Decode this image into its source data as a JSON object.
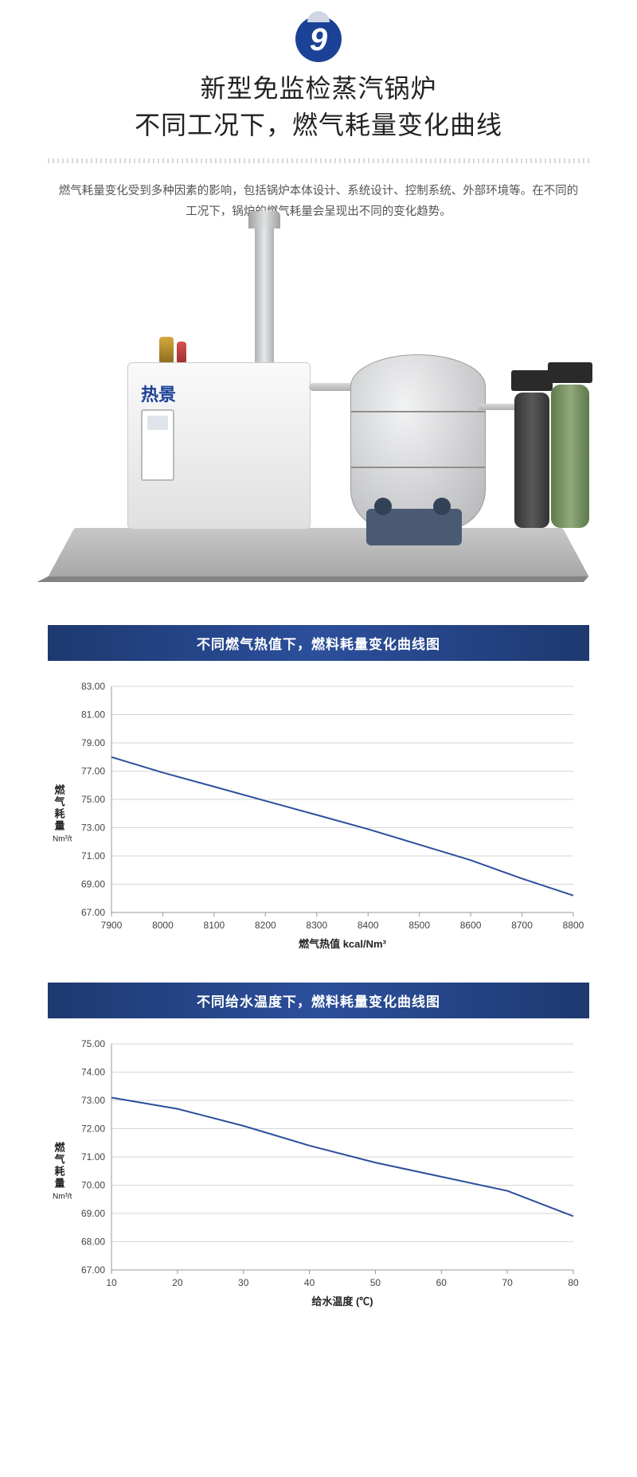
{
  "badge_number": "9",
  "title_line1": "新型免监检蒸汽锅炉",
  "title_line2": "不同工况下，燃气耗量变化曲线",
  "description": "燃气耗量变化受到多种因素的影响，包括锅炉本体设计、系统设计、控制系统、外部环境等。在不同的工况下，锅炉的燃气耗量会呈现出不同的变化趋势。",
  "equipment_brand": "热景",
  "chart1": {
    "type": "line",
    "banner": "不同燃气热值下，燃料耗量变化曲线图",
    "xlabel": "燃气热值 kcal/Nm³",
    "ylabel": "燃气耗量",
    "yunit": "Nm³/t",
    "line_color": "#2c4f9c",
    "line_width": 2,
    "grid_color": "#d6d6d6",
    "background_color": "#ffffff",
    "axis_color": "#999999",
    "tick_fontsize": 12,
    "xlim": [
      7900,
      8800
    ],
    "ylim": [
      67,
      83
    ],
    "xticks": [
      7900,
      8000,
      8100,
      8200,
      8300,
      8400,
      8500,
      8600,
      8700,
      8800
    ],
    "yticks": [
      67,
      69,
      71,
      73,
      75,
      77,
      79,
      81,
      83
    ],
    "ytick_fmt": "0.00",
    "x": [
      7900,
      8000,
      8100,
      8200,
      8300,
      8400,
      8500,
      8600,
      8700,
      8800
    ],
    "y": [
      78.0,
      76.9,
      75.9,
      74.9,
      73.9,
      72.9,
      71.8,
      70.7,
      69.4,
      68.2
    ]
  },
  "chart2": {
    "type": "line",
    "banner": "不同给水温度下，燃料耗量变化曲线图",
    "xlabel": "给水温度 (℃)",
    "ylabel": "燃气耗量",
    "yunit": "Nm³/t",
    "line_color": "#2c4f9c",
    "line_width": 2,
    "grid_color": "#d6d6d6",
    "background_color": "#ffffff",
    "axis_color": "#999999",
    "tick_fontsize": 12,
    "xlim": [
      10,
      80
    ],
    "ylim": [
      67,
      75
    ],
    "xticks": [
      10,
      20,
      30,
      40,
      50,
      60,
      70,
      80
    ],
    "yticks": [
      67,
      68,
      69,
      70,
      71,
      72,
      73,
      74,
      75
    ],
    "ytick_fmt": "0.00",
    "x": [
      10,
      20,
      30,
      40,
      50,
      60,
      70,
      80
    ],
    "y": [
      73.1,
      72.7,
      72.1,
      71.4,
      70.8,
      70.3,
      69.8,
      68.9
    ]
  }
}
